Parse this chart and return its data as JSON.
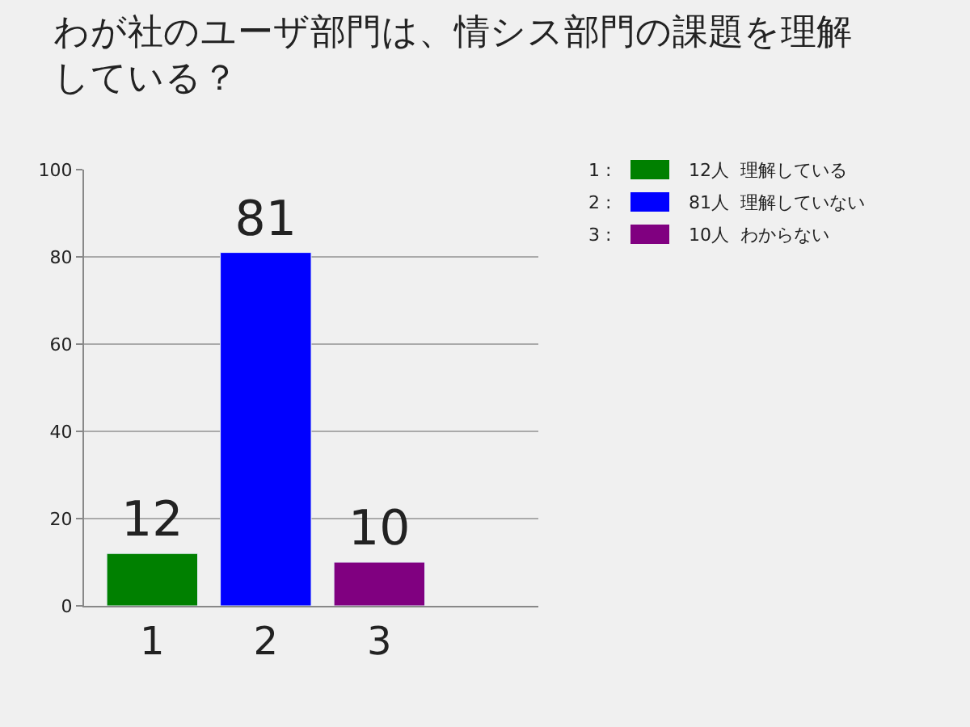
{
  "chart_data": {
    "type": "bar",
    "title": "わが社のユーザ部門は、情シス部門の課題を理解している？",
    "annotations": [
      "1 :",
      "2 :",
      "3 :"
    ],
    "categories": [
      "1",
      "2",
      "3"
    ],
    "series": [
      {
        "name": "12人  理解している",
        "color": "#008000",
        "values": [
          12,
          null,
          null
        ]
      },
      {
        "name": "81人  理解していない",
        "color": "#0000ff",
        "values": [
          null,
          81,
          null
        ]
      },
      {
        "name": "10人  わからない",
        "color": "#800080",
        "values": [
          null,
          null,
          10
        ]
      }
    ],
    "ylim": [
      0,
      100
    ],
    "yticks": [
      0,
      20,
      40,
      60,
      80,
      100
    ],
    "grid": "y",
    "legend": "right",
    "data_labels": true
  }
}
